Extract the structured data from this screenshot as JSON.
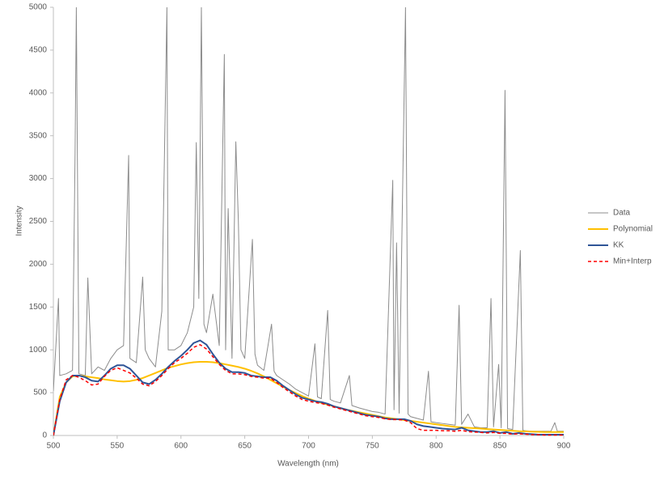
{
  "chart_data": {
    "type": "line",
    "x_label": "Wavelength (nm)",
    "y_label": "Intensity",
    "xlim": [
      500,
      900
    ],
    "xticks": [
      500,
      550,
      600,
      650,
      700,
      750,
      800,
      850,
      900
    ],
    "ylim": [
      0,
      5000
    ],
    "yticks": [
      0,
      500,
      1000,
      1500,
      2000,
      2500,
      3000,
      3500,
      4000,
      4500,
      5000
    ],
    "grid": false,
    "legend": "right",
    "x": [
      500,
      505,
      510,
      515,
      520,
      525,
      530,
      535,
      540,
      545,
      550,
      555,
      560,
      565,
      570,
      575,
      580,
      585,
      590,
      595,
      600,
      605,
      610,
      615,
      620,
      625,
      630,
      635,
      640,
      645,
      650,
      655,
      660,
      665,
      670,
      675,
      680,
      685,
      690,
      695,
      700,
      705,
      710,
      715,
      720,
      725,
      730,
      735,
      740,
      745,
      750,
      755,
      760,
      765,
      770,
      775,
      780,
      785,
      790,
      795,
      800,
      805,
      810,
      815,
      820,
      825,
      830,
      835,
      840,
      845,
      850,
      855,
      860,
      865,
      870,
      875,
      880,
      885,
      890,
      895,
      900
    ],
    "series": [
      {
        "name": "Data",
        "color": "#8c8c8c",
        "width": 1,
        "x": [
          500,
          504,
          505,
          510,
          515,
          517,
          518,
          520,
          525,
          527,
          530,
          535,
          540,
          545,
          550,
          555,
          559,
          560,
          565,
          570,
          572,
          575,
          580,
          585,
          589,
          590,
          595,
          600,
          605,
          610,
          612,
          614,
          616,
          618,
          620,
          625,
          630,
          634,
          635,
          637,
          640,
          643,
          645,
          647,
          650,
          656,
          658,
          660,
          665,
          671,
          673,
          675,
          680,
          685,
          690,
          695,
          700,
          705,
          707,
          710,
          715,
          717,
          720,
          725,
          732,
          734,
          740,
          745,
          750,
          755,
          760,
          766,
          767,
          769,
          771,
          776,
          778,
          780,
          785,
          790,
          794,
          796,
          800,
          805,
          810,
          815,
          818,
          820,
          825,
          830,
          835,
          840,
          843,
          845,
          849,
          851,
          854,
          856,
          860,
          866,
          868,
          870,
          875,
          880,
          885,
          890,
          893,
          895,
          900
        ],
        "values": [
          520,
          1600,
          700,
          720,
          760,
          3280,
          5000,
          720,
          700,
          1840,
          720,
          800,
          760,
          900,
          1000,
          1050,
          3270,
          900,
          850,
          1850,
          1000,
          900,
          800,
          1450,
          5000,
          1000,
          1000,
          1050,
          1200,
          1500,
          3420,
          1600,
          5000,
          1300,
          1200,
          1650,
          1050,
          4450,
          1000,
          2650,
          900,
          3430,
          2500,
          1000,
          900,
          2290,
          950,
          820,
          760,
          1300,
          750,
          700,
          650,
          600,
          540,
          500,
          460,
          1070,
          450,
          430,
          1460,
          420,
          400,
          380,
          700,
          350,
          320,
          300,
          280,
          270,
          250,
          2980,
          300,
          2250,
          260,
          5000,
          250,
          220,
          200,
          180,
          750,
          160,
          150,
          140,
          130,
          120,
          1520,
          130,
          250,
          100,
          90,
          90,
          1600,
          100,
          830,
          90,
          4030,
          80,
          70,
          2160,
          60,
          55,
          50,
          50,
          50,
          50,
          150,
          50,
          50
        ]
      },
      {
        "name": "Polynomial",
        "color": "#FFC000",
        "width": 2,
        "values": [
          0,
          450,
          620,
          690,
          700,
          690,
          680,
          670,
          655,
          645,
          635,
          630,
          635,
          650,
          670,
          700,
          730,
          760,
          790,
          810,
          830,
          845,
          855,
          860,
          860,
          855,
          845,
          830,
          815,
          800,
          780,
          755,
          725,
          690,
          650,
          610,
          570,
          530,
          495,
          460,
          430,
          405,
          380,
          360,
          340,
          320,
          300,
          285,
          270,
          255,
          240,
          225,
          210,
          200,
          190,
          180,
          170,
          160,
          150,
          140,
          130,
          120,
          110,
          100,
          95,
          90,
          85,
          80,
          75,
          70,
          65,
          60,
          55,
          50,
          48,
          45,
          42,
          40,
          40,
          40,
          40
        ]
      },
      {
        "name": "KK",
        "color": "#2F5597",
        "width": 2,
        "values": [
          0,
          400,
          620,
          700,
          700,
          680,
          640,
          630,
          700,
          780,
          820,
          820,
          780,
          700,
          620,
          600,
          650,
          720,
          800,
          870,
          930,
          1000,
          1080,
          1110,
          1060,
          950,
          850,
          780,
          740,
          740,
          730,
          700,
          690,
          680,
          680,
          640,
          580,
          530,
          480,
          440,
          420,
          400,
          390,
          370,
          340,
          320,
          300,
          280,
          260,
          240,
          230,
          220,
          200,
          190,
          190,
          190,
          170,
          130,
          110,
          100,
          90,
          80,
          75,
          70,
          90,
          60,
          50,
          40,
          40,
          50,
          30,
          40,
          20,
          30,
          20,
          15,
          10,
          10,
          10,
          10,
          10
        ]
      },
      {
        "name": "Min+Interp",
        "color": "#FF0000",
        "width": 1.5,
        "dash": "dashed",
        "values": [
          0,
          420,
          650,
          700,
          680,
          640,
          590,
          600,
          690,
          760,
          790,
          760,
          730,
          670,
          600,
          580,
          630,
          700,
          780,
          850,
          900,
          960,
          1030,
          1060,
          1010,
          920,
          830,
          760,
          720,
          720,
          710,
          690,
          680,
          670,
          670,
          620,
          560,
          510,
          460,
          420,
          400,
          385,
          375,
          355,
          330,
          310,
          290,
          270,
          250,
          230,
          220,
          210,
          195,
          185,
          185,
          180,
          150,
          80,
          60,
          60,
          60,
          55,
          55,
          50,
          60,
          45,
          40,
          35,
          30,
          35,
          25,
          25,
          15,
          20,
          15,
          10,
          10,
          5,
          5,
          5,
          5
        ]
      }
    ]
  }
}
